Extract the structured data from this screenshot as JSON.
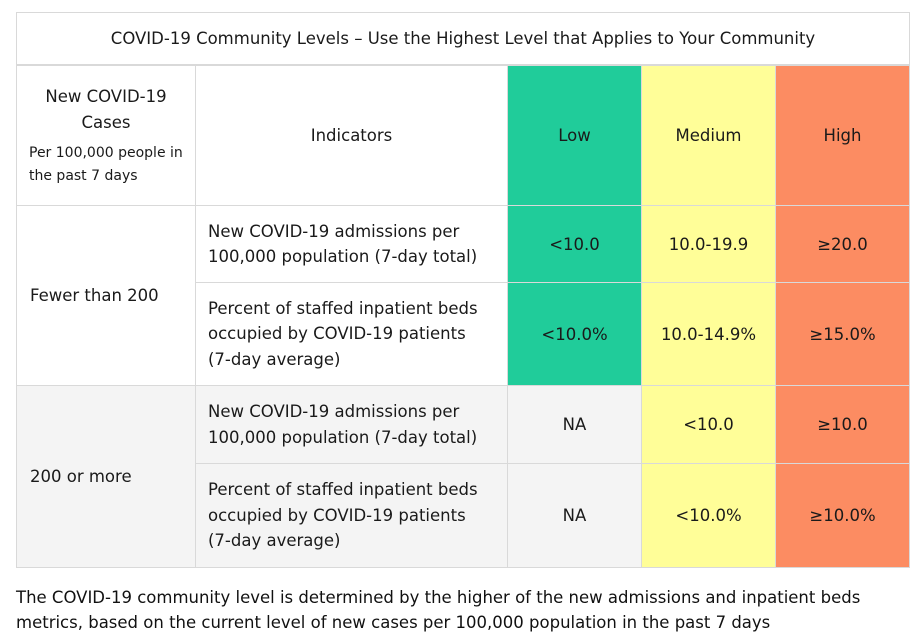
{
  "title": "COVID-19 Community Levels – Use the Highest Level that Applies to Your Community",
  "header": {
    "cases_title": "New COVID-19 Cases",
    "cases_subtitle": "Per 100,000 people in the past 7 days",
    "indicators": "Indicators",
    "low": "Low",
    "medium": "Medium",
    "high": "High"
  },
  "colors": {
    "low": "#20cc9a",
    "medium": "#fffe98",
    "high": "#fc8c62",
    "na": "#f4f4f4"
  },
  "groups": [
    {
      "cases": "Fewer than 200",
      "rows": [
        {
          "indicator": "New COVID-19 admissions per 100,000 population (7-day total)",
          "low": "<10.0",
          "medium": "10.0-19.9",
          "high": "≥20.0"
        },
        {
          "indicator": "Percent of staffed inpatient beds occupied by COVID-19 patients (7-day average)",
          "low": "<10.0%",
          "medium": "10.0-14.9%",
          "high": "≥15.0%"
        }
      ]
    },
    {
      "cases": "200 or more",
      "rows": [
        {
          "indicator": "New COVID-19 admissions per 100,000 population (7-day total)",
          "low": "NA",
          "medium": "<10.0",
          "high": "≥10.0"
        },
        {
          "indicator": "Percent of staffed inpatient beds occupied by COVID-19 patients (7-day average)",
          "low": "NA",
          "medium": "<10.0%",
          "high": "≥10.0%"
        }
      ]
    }
  ],
  "footnote": "The COVID-19 community level is determined by the higher of the new admissions and inpatient beds metrics, based on the current level of new cases per 100,000 population in the past 7 days"
}
